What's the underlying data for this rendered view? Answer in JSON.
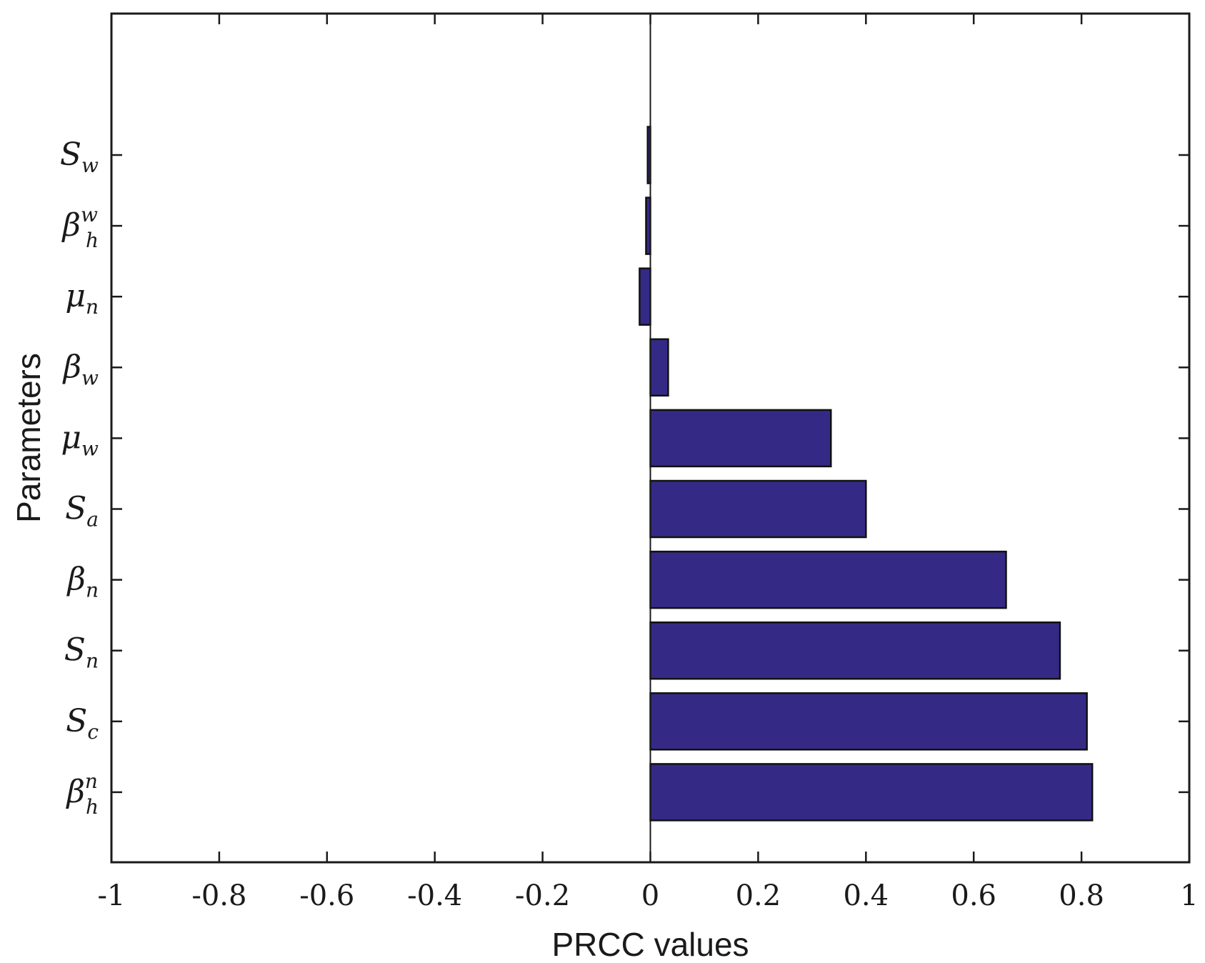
{
  "chart_data": {
    "type": "bar",
    "orientation": "horizontal",
    "title": "",
    "xlabel": "PRCC values",
    "ylabel": "Parameters",
    "xlim": [
      -1,
      1
    ],
    "xticks": [
      "-1",
      "-0.8",
      "-0.6",
      "-0.4",
      "-0.2",
      "0",
      "0.2",
      "0.4",
      "0.6",
      "0.8",
      "1"
    ],
    "grid": false,
    "bar_color": "#342a86",
    "categories": [
      {
        "id": "S_w",
        "base": "S",
        "sub": "w",
        "sup": ""
      },
      {
        "id": "beta_h^w",
        "base": "β",
        "sub": "h",
        "sup": "w"
      },
      {
        "id": "mu_n",
        "base": "μ",
        "sub": "n",
        "sup": ""
      },
      {
        "id": "beta_w",
        "base": "β",
        "sub": "w",
        "sup": ""
      },
      {
        "id": "mu_w",
        "base": "μ",
        "sub": "w",
        "sup": ""
      },
      {
        "id": "S_a",
        "base": "S",
        "sub": "a",
        "sup": ""
      },
      {
        "id": "beta_n",
        "base": "β",
        "sub": "n",
        "sup": ""
      },
      {
        "id": "S_n",
        "base": "S",
        "sub": "n",
        "sup": ""
      },
      {
        "id": "S_c",
        "base": "S",
        "sub": "c",
        "sup": ""
      },
      {
        "id": "beta_h^n",
        "base": "β",
        "sub": "h",
        "sup": "n"
      }
    ],
    "values": [
      -0.005,
      -0.008,
      -0.02,
      0.033,
      0.335,
      0.4,
      0.66,
      0.76,
      0.81,
      0.82
    ]
  }
}
